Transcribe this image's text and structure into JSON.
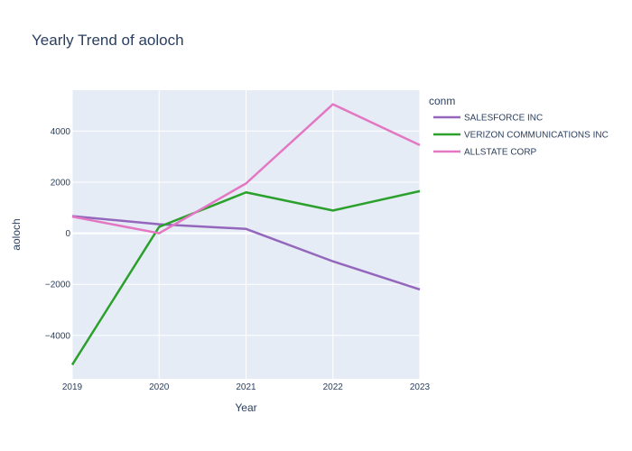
{
  "chart_data": {
    "type": "line",
    "title": "Yearly Trend of aoloch",
    "xlabel": "Year",
    "ylabel": "aoloch",
    "legend_title": "conm",
    "legend_position": "right",
    "grid": true,
    "x": [
      "2019",
      "2020",
      "2021",
      "2022",
      "2023"
    ],
    "xlim": [
      2019,
      2023
    ],
    "ylim": [
      -5700,
      5600
    ],
    "y_ticks": [
      -4000,
      -2000,
      0,
      2000,
      4000
    ],
    "y_tick_labels": [
      "−4000",
      "−2000",
      "0",
      "2000",
      "4000"
    ],
    "series": [
      {
        "name": "SALESFORCE INC",
        "color": "#9467bd",
        "values": [
          670,
          350,
          170,
          -1100,
          -2200
        ]
      },
      {
        "name": "VERIZON COMMUNICATIONS INC",
        "color": "#2ca02c",
        "values": [
          -5150,
          250,
          1600,
          890,
          1650
        ]
      },
      {
        "name": "ALLSTATE CORP",
        "color": "#e377c2",
        "values": [
          650,
          0,
          1950,
          5050,
          3450
        ]
      }
    ]
  }
}
